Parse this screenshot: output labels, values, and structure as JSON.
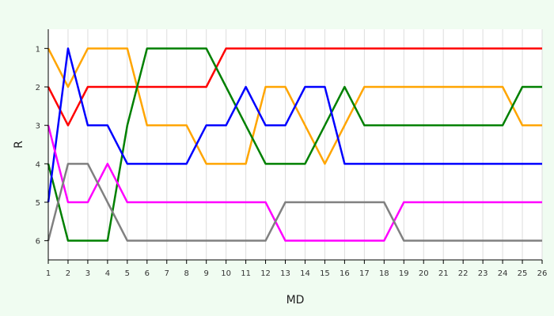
{
  "chart_data": {
    "type": "line",
    "title": "",
    "xlabel": "MD",
    "ylabel": "R",
    "x": [
      1,
      2,
      3,
      4,
      5,
      6,
      7,
      8,
      9,
      10,
      11,
      12,
      13,
      14,
      15,
      16,
      17,
      18,
      19,
      20,
      21,
      22,
      23,
      24,
      25,
      26
    ],
    "xlim": [
      1,
      26
    ],
    "ylim": [
      6.5,
      0.5
    ],
    "y_inverted": true,
    "y_ticks": [
      1,
      2,
      3,
      4,
      5,
      6
    ],
    "grid": true,
    "legend": "none",
    "series": [
      {
        "color": "#ff0000",
        "values": [
          2,
          3,
          2,
          2,
          2,
          2,
          2,
          2,
          2,
          1,
          1,
          1,
          1,
          1,
          1,
          1,
          1,
          1,
          1,
          1,
          1,
          1,
          1,
          1,
          1,
          1
        ]
      },
      {
        "color": "#ffa500",
        "values": [
          1,
          2,
          1,
          1,
          1,
          3,
          3,
          3,
          4,
          4,
          4,
          2,
          2,
          3,
          4,
          3,
          2,
          2,
          2,
          2,
          2,
          2,
          2,
          2,
          3,
          3
        ]
      },
      {
        "color": "#008000",
        "values": [
          4,
          6,
          6,
          6,
          3,
          1,
          1,
          1,
          1,
          2,
          3,
          4,
          4,
          4,
          3,
          2,
          3,
          3,
          3,
          3,
          3,
          3,
          3,
          3,
          2,
          2
        ]
      },
      {
        "color": "#0000ff",
        "values": [
          5,
          1,
          3,
          3,
          4,
          4,
          4,
          4,
          3,
          3,
          2,
          3,
          3,
          2,
          2,
          4,
          4,
          4,
          4,
          4,
          4,
          4,
          4,
          4,
          4,
          4
        ]
      },
      {
        "color": "#ff00ff",
        "values": [
          3,
          5,
          5,
          4,
          5,
          5,
          5,
          5,
          5,
          5,
          5,
          5,
          6,
          6,
          6,
          6,
          6,
          6,
          5,
          5,
          5,
          5,
          5,
          5,
          5,
          5
        ]
      },
      {
        "color": "#808080",
        "values": [
          6,
          4,
          4,
          5,
          6,
          6,
          6,
          6,
          6,
          6,
          6,
          6,
          5,
          5,
          5,
          5,
          5,
          5,
          6,
          6,
          6,
          6,
          6,
          6,
          6,
          6
        ]
      }
    ]
  }
}
